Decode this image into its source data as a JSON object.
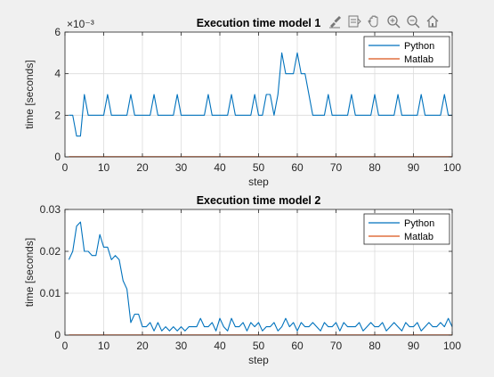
{
  "toolbar": {
    "icons": [
      "brush-icon",
      "data-tips-icon",
      "pan-icon",
      "zoom-in-icon",
      "zoom-out-icon",
      "home-icon"
    ]
  },
  "chart_data": [
    {
      "type": "line",
      "title": "Execution time model 1",
      "xlabel": "step",
      "ylabel": "time [seconds]",
      "exponent_label": "×10⁻³",
      "xlim": [
        0,
        100
      ],
      "ylim": [
        0,
        0.006
      ],
      "xticks": [
        0,
        10,
        20,
        30,
        40,
        50,
        60,
        70,
        80,
        90,
        100
      ],
      "yticks": [
        0,
        0.002,
        0.004,
        0.006
      ],
      "ytick_labels": [
        "0",
        "2",
        "4",
        "6"
      ],
      "grid": true,
      "legend_position": "top-right",
      "series": [
        {
          "name": "Python",
          "color": "#0072BD",
          "x": [
            1,
            2,
            3,
            4,
            5,
            6,
            7,
            8,
            9,
            10,
            11,
            12,
            13,
            14,
            15,
            16,
            17,
            18,
            19,
            20,
            21,
            22,
            23,
            24,
            25,
            26,
            27,
            28,
            29,
            30,
            31,
            32,
            33,
            34,
            35,
            36,
            37,
            38,
            39,
            40,
            41,
            42,
            43,
            44,
            45,
            46,
            47,
            48,
            49,
            50,
            51,
            52,
            53,
            54,
            55,
            56,
            57,
            58,
            59,
            60,
            61,
            62,
            63,
            64,
            65,
            66,
            67,
            68,
            69,
            70,
            71,
            72,
            73,
            74,
            75,
            76,
            77,
            78,
            79,
            80,
            81,
            82,
            83,
            84,
            85,
            86,
            87,
            88,
            89,
            90,
            91,
            92,
            93,
            94,
            95,
            96,
            97,
            98,
            99,
            100
          ],
          "values": [
            0.002,
            0.002,
            0.001,
            0.001,
            0.003,
            0.002,
            0.002,
            0.002,
            0.002,
            0.002,
            0.003,
            0.002,
            0.002,
            0.002,
            0.002,
            0.002,
            0.003,
            0.002,
            0.002,
            0.002,
            0.002,
            0.002,
            0.003,
            0.002,
            0.002,
            0.002,
            0.002,
            0.002,
            0.003,
            0.002,
            0.002,
            0.002,
            0.002,
            0.002,
            0.002,
            0.002,
            0.003,
            0.002,
            0.002,
            0.002,
            0.002,
            0.002,
            0.003,
            0.002,
            0.002,
            0.002,
            0.002,
            0.002,
            0.003,
            0.002,
            0.002,
            0.003,
            0.003,
            0.002,
            0.003,
            0.005,
            0.004,
            0.004,
            0.004,
            0.005,
            0.004,
            0.004,
            0.003,
            0.002,
            0.002,
            0.002,
            0.002,
            0.003,
            0.002,
            0.002,
            0.002,
            0.002,
            0.002,
            0.003,
            0.002,
            0.002,
            0.002,
            0.002,
            0.002,
            0.003,
            0.002,
            0.002,
            0.002,
            0.002,
            0.002,
            0.003,
            0.002,
            0.002,
            0.002,
            0.002,
            0.002,
            0.003,
            0.002,
            0.002,
            0.002,
            0.002,
            0.002,
            0.003,
            0.002,
            0.002
          ]
        },
        {
          "name": "Matlab",
          "color": "#D95319",
          "x": [
            1,
            100
          ],
          "values": [
            1e-05,
            1e-05
          ]
        }
      ]
    },
    {
      "type": "line",
      "title": "Execution time model 2",
      "xlabel": "step",
      "ylabel": "time [seconds]",
      "xlim": [
        0,
        100
      ],
      "ylim": [
        0,
        0.03
      ],
      "xticks": [
        0,
        10,
        20,
        30,
        40,
        50,
        60,
        70,
        80,
        90,
        100
      ],
      "yticks": [
        0,
        0.01,
        0.02,
        0.03
      ],
      "ytick_labels": [
        "0",
        "0.01",
        "0.02",
        "0.03"
      ],
      "grid": true,
      "legend_position": "top-right",
      "series": [
        {
          "name": "Python",
          "color": "#0072BD",
          "x": [
            1,
            2,
            3,
            4,
            5,
            6,
            7,
            8,
            9,
            10,
            11,
            12,
            13,
            14,
            15,
            16,
            17,
            18,
            19,
            20,
            21,
            22,
            23,
            24,
            25,
            26,
            27,
            28,
            29,
            30,
            31,
            32,
            33,
            34,
            35,
            36,
            37,
            38,
            39,
            40,
            41,
            42,
            43,
            44,
            45,
            46,
            47,
            48,
            49,
            50,
            51,
            52,
            53,
            54,
            55,
            56,
            57,
            58,
            59,
            60,
            61,
            62,
            63,
            64,
            65,
            66,
            67,
            68,
            69,
            70,
            71,
            72,
            73,
            74,
            75,
            76,
            77,
            78,
            79,
            80,
            81,
            82,
            83,
            84,
            85,
            86,
            87,
            88,
            89,
            90,
            91,
            92,
            93,
            94,
            95,
            96,
            97,
            98,
            99,
            100
          ],
          "values": [
            0.018,
            0.02,
            0.026,
            0.027,
            0.02,
            0.02,
            0.019,
            0.019,
            0.024,
            0.021,
            0.021,
            0.018,
            0.019,
            0.018,
            0.013,
            0.011,
            0.003,
            0.005,
            0.005,
            0.002,
            0.002,
            0.003,
            0.001,
            0.003,
            0.001,
            0.002,
            0.001,
            0.002,
            0.001,
            0.002,
            0.001,
            0.002,
            0.002,
            0.002,
            0.004,
            0.002,
            0.002,
            0.003,
            0.001,
            0.004,
            0.002,
            0.001,
            0.004,
            0.002,
            0.002,
            0.003,
            0.001,
            0.003,
            0.002,
            0.003,
            0.001,
            0.002,
            0.002,
            0.003,
            0.001,
            0.002,
            0.004,
            0.002,
            0.003,
            0.001,
            0.003,
            0.002,
            0.002,
            0.003,
            0.002,
            0.001,
            0.003,
            0.002,
            0.002,
            0.003,
            0.001,
            0.003,
            0.002,
            0.002,
            0.002,
            0.003,
            0.001,
            0.002,
            0.003,
            0.002,
            0.002,
            0.003,
            0.001,
            0.002,
            0.003,
            0.002,
            0.001,
            0.003,
            0.002,
            0.002,
            0.003,
            0.001,
            0.002,
            0.003,
            0.002,
            0.002,
            0.003,
            0.002,
            0.004,
            0.002
          ]
        },
        {
          "name": "Matlab",
          "color": "#D95319",
          "x": [
            1,
            100
          ],
          "values": [
            5e-05,
            5e-05
          ]
        }
      ]
    }
  ]
}
